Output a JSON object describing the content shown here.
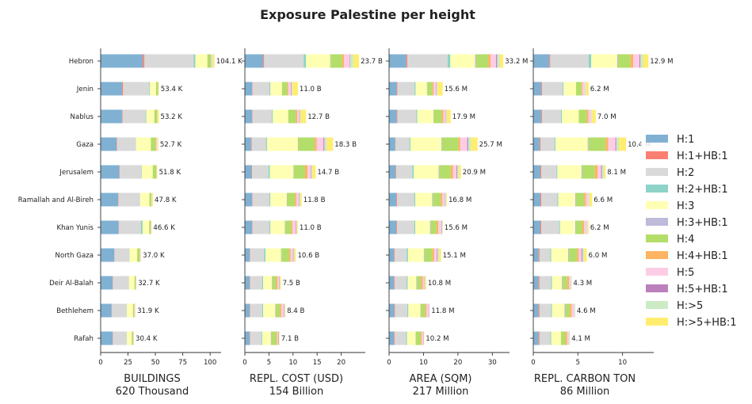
{
  "chart_data": {
    "type": "bar",
    "orientation": "horizontal",
    "stacked": true,
    "title": "Exposure Palestine per height",
    "categories": [
      "Hebron",
      "Jenin",
      "Nablus",
      "Gaza",
      "Jerusalem",
      "Ramallah and Al-Bireh",
      "Khan Yunis",
      "North Gaza",
      "Deir Al-Balah",
      "Bethlehem",
      "Rafah"
    ],
    "segment_names": [
      "H:1",
      "H:1+HB:1",
      "H:2",
      "H:2+HB:1",
      "H:3",
      "H:3+HB:1",
      "H:4",
      "H:4+HB:1",
      "H:5",
      "H:5+HB:1",
      "H:>5",
      "H:>5+HB:1"
    ],
    "colors": [
      "#80b1d3",
      "#fb8072",
      "#d9d9d9",
      "#8dd3c7",
      "#ffffb3",
      "#bebada",
      "#b3de69",
      "#fdb462",
      "#fccde5",
      "#bc80bd",
      "#ccebc5",
      "#ffed6f"
    ],
    "legend_position": "right",
    "grid": false,
    "panels": [
      {
        "xlabel": "BUILDINGS",
        "subtitle": "620 Thousand",
        "xlim": [
          0,
          110
        ],
        "xticks": [
          0,
          25,
          50,
          75,
          100
        ],
        "xtick_labels": [
          "0",
          "25",
          "50",
          "75",
          "100"
        ],
        "totals": [
          "104.1 K",
          "53.4 K",
          "53.2 K",
          "52.7 K",
          "51.8 K",
          "47.8 K",
          "46.6 K",
          "37.0 K",
          "32.7 K",
          "31.9 K",
          "30.4 K"
        ],
        "values": [
          [
            38.5,
            1.5,
            45,
            1.5,
            11,
            0,
            3.3,
            0.3,
            0.8,
            0,
            0.8,
            1.4
          ],
          [
            19.5,
            1,
            24,
            0.6,
            5.5,
            0,
            1.8,
            0.2,
            0.3,
            0,
            0.2,
            0.3
          ],
          [
            19.5,
            0.5,
            21,
            0.6,
            7.5,
            0,
            2.5,
            0.2,
            0.2,
            0,
            0.1,
            1.1
          ],
          [
            14.5,
            0.5,
            17,
            0.3,
            13.5,
            0,
            4.5,
            0.3,
            1.1,
            0,
            0.2,
            0.8
          ],
          [
            17,
            0.3,
            20,
            0.3,
            10,
            0,
            3.3,
            0.2,
            0.3,
            0,
            0.1,
            0.3
          ],
          [
            16,
            0.3,
            19.5,
            0.2,
            8.5,
            0,
            1.8,
            0.2,
            0.3,
            0,
            0.1,
            0.9
          ],
          [
            16.5,
            0.3,
            20,
            1.5,
            6,
            0,
            1.5,
            0.2,
            0.3,
            0,
            0.1,
            0.2
          ],
          [
            12.5,
            0.2,
            13.5,
            0.2,
            7,
            0,
            2.3,
            0.2,
            0.8,
            0,
            0.1,
            0.2
          ],
          [
            11,
            0.2,
            14.5,
            0.2,
            5,
            0,
            1.2,
            0.2,
            0.3,
            0,
            0.1,
            0
          ],
          [
            10,
            0.3,
            13.5,
            0.2,
            5.5,
            0,
            1.1,
            0.2,
            0.6,
            0,
            0.2,
            0.3
          ],
          [
            11,
            0.2,
            12.5,
            0.2,
            4.5,
            0,
            1.3,
            0.2,
            0.3,
            0,
            0.1,
            0.1
          ]
        ]
      },
      {
        "xlabel": "REPL. COST (USD)",
        "subtitle": "154 Billion",
        "xlim": [
          0,
          25
        ],
        "xticks": [
          0,
          5,
          10,
          15,
          20
        ],
        "xtick_labels": [
          "0",
          "5",
          "10",
          "15",
          "20"
        ],
        "totals": [
          "23.7 B",
          "11.0 B",
          "12.7 B",
          "18.3 B",
          "14.7 B",
          "11.8 B",
          "11.0 B",
          "10.6 B",
          "7.5 B",
          "8.4 B",
          "7.1 B"
        ],
        "values": [
          [
            3.8,
            0.2,
            8.2,
            0.5,
            5,
            0.1,
            2.4,
            0.4,
            1.2,
            0.1,
            0.6,
            1.2
          ],
          [
            1.5,
            0.1,
            3.5,
            0.2,
            2.4,
            0,
            1.1,
            0.2,
            0.6,
            0.1,
            0.2,
            1.1
          ],
          [
            1.5,
            0.1,
            4,
            0.2,
            3.2,
            0,
            1.6,
            0.3,
            0.4,
            0.1,
            0.2,
            1.1
          ],
          [
            1.3,
            0.1,
            3,
            0.2,
            6.4,
            0.1,
            3.4,
            0.4,
            1.4,
            0.2,
            0.5,
            1.3
          ],
          [
            1.4,
            0.1,
            3.4,
            0.3,
            4.9,
            0.1,
            2.3,
            0.5,
            0.7,
            0.1,
            0.2,
            0.7
          ],
          [
            1.5,
            0.1,
            3.5,
            0.2,
            3.4,
            0.1,
            1.6,
            0.3,
            0.5,
            0.1,
            0.2,
            0.3
          ],
          [
            1.5,
            0.1,
            3.5,
            0.2,
            3,
            0.1,
            1.2,
            0.3,
            0.7,
            0.1,
            0.1,
            0.2
          ],
          [
            1,
            0.1,
            2.9,
            0.3,
            3.2,
            0.1,
            1.6,
            0.3,
            0.5,
            0.1,
            0.2,
            0.3
          ],
          [
            1,
            0.1,
            2.5,
            0.2,
            1.8,
            0.1,
            0.8,
            0.3,
            0.3,
            0.1,
            0.1,
            0.2
          ],
          [
            1,
            0.1,
            2.5,
            0.2,
            2.5,
            0.1,
            0.9,
            0.3,
            0.5,
            0.1,
            0.1,
            0.1
          ],
          [
            1,
            0.1,
            2.3,
            0.2,
            1.8,
            0.1,
            1,
            0.2,
            0.2,
            0.1,
            0.1,
            0.1
          ]
        ]
      },
      {
        "xlabel": "AREA (SQM)",
        "subtitle": "217 Million",
        "xlim": [
          0,
          35
        ],
        "xticks": [
          0,
          10,
          20,
          30
        ],
        "xtick_labels": [
          "0",
          "10",
          "20",
          "30"
        ],
        "totals": [
          "33.2 M",
          "15.6 M",
          "17.9 M",
          "25.7 M",
          "20.9 M",
          "16.8 M",
          "15.6 M",
          "15.1 M",
          "10.8 M",
          "11.8 M",
          "10.2 M"
        ],
        "values": [
          [
            5,
            0.3,
            11.7,
            0.8,
            7.2,
            0.3,
            3.5,
            0.7,
            1.6,
            0.3,
            0.8,
            1
          ],
          [
            2.2,
            0.2,
            5,
            0.3,
            3.3,
            0.1,
            1.5,
            0.3,
            0.8,
            0.1,
            0.3,
            1.5
          ],
          [
            2.2,
            0.2,
            5.5,
            0.3,
            4.7,
            0.1,
            2.3,
            0.5,
            0.6,
            0.1,
            0.3,
            1.1
          ],
          [
            1.8,
            0.1,
            4,
            0.3,
            9,
            0.2,
            4.7,
            0.6,
            2,
            0.3,
            0.8,
            1.9
          ],
          [
            1.9,
            0.2,
            4.7,
            0.4,
            7.2,
            0.2,
            3.3,
            0.7,
            1,
            0.2,
            0.4,
            0.7
          ],
          [
            2.1,
            0.2,
            5,
            0.3,
            4.9,
            0.2,
            2.3,
            0.5,
            0.7,
            0.1,
            0.3,
            0.2
          ],
          [
            2.1,
            0.2,
            5,
            0.3,
            4.3,
            0.2,
            1.7,
            0.5,
            0.9,
            0.1,
            0.2,
            0.1
          ],
          [
            1.4,
            0.2,
            3.5,
            0.4,
            4.6,
            0.2,
            2.3,
            0.5,
            0.8,
            0.2,
            0.4,
            0.6
          ],
          [
            1.4,
            0.2,
            3.5,
            0.3,
            2.5,
            0.2,
            1.2,
            0.5,
            0.4,
            0.1,
            0.2,
            0.3
          ],
          [
            1.5,
            0.2,
            3.6,
            0.3,
            3.5,
            0.1,
            1.3,
            0.4,
            0.7,
            0.1,
            0.1,
            0
          ],
          [
            1.4,
            0.2,
            3.3,
            0.3,
            2.5,
            0.1,
            1.4,
            0.3,
            0.4,
            0.1,
            0.1,
            0.1
          ]
        ]
      },
      {
        "xlabel": "REPL. CARBON TON",
        "subtitle": "86 Million",
        "xlim": [
          0,
          13.5
        ],
        "xticks": [
          0,
          5,
          10
        ],
        "xtick_labels": [
          "0",
          "5",
          "10"
        ],
        "totals": [
          "12.9 M",
          "6.2 M",
          "7.0 M",
          "10.4 M",
          "8.1 M",
          "6.6 M",
          "6.2 M",
          "6.0 M",
          "4.3 M",
          "4.6 M",
          "4.1 M"
        ],
        "values": [
          [
            1.8,
            0.1,
            4.3,
            0.3,
            2.9,
            0.1,
            1.4,
            0.3,
            0.7,
            0.1,
            0.3,
            0.6
          ],
          [
            0.9,
            0.1,
            2.3,
            0.1,
            1.4,
            0,
            0.6,
            0.1,
            0.3,
            0,
            0.1,
            0.3
          ],
          [
            0.9,
            0.1,
            2.1,
            0.1,
            1.9,
            0,
            0.9,
            0.2,
            0.3,
            0,
            0.1,
            0.4
          ],
          [
            0.7,
            0.1,
            1.6,
            0.1,
            3.6,
            0.1,
            1.9,
            0.3,
            0.8,
            0.1,
            0.3,
            0.8
          ],
          [
            0.8,
            0.1,
            1.7,
            0.1,
            2.7,
            0.1,
            1.4,
            0.3,
            0.4,
            0.1,
            0.2,
            0.2
          ],
          [
            0.8,
            0.1,
            1.8,
            0.1,
            1.9,
            0.1,
            0.9,
            0.2,
            0.3,
            0,
            0.1,
            0.3
          ],
          [
            0.8,
            0.1,
            2,
            0.1,
            1.7,
            0.1,
            0.7,
            0.2,
            0.3,
            0,
            0.1,
            0.1
          ],
          [
            0.6,
            0.1,
            1.2,
            0.1,
            1.9,
            0.1,
            0.9,
            0.2,
            0.3,
            0.1,
            0.2,
            0.3
          ],
          [
            0.6,
            0.1,
            1.3,
            0.1,
            1.1,
            0.1,
            0.5,
            0.2,
            0.2,
            0,
            0.1,
            0
          ],
          [
            0.6,
            0.1,
            1.3,
            0.1,
            1.4,
            0.1,
            0.5,
            0.2,
            0.3,
            0,
            0.1,
            0
          ],
          [
            0.6,
            0.1,
            1.2,
            0.1,
            1.1,
            0,
            0.5,
            0.2,
            0.2,
            0,
            0.1,
            0
          ]
        ]
      }
    ]
  }
}
